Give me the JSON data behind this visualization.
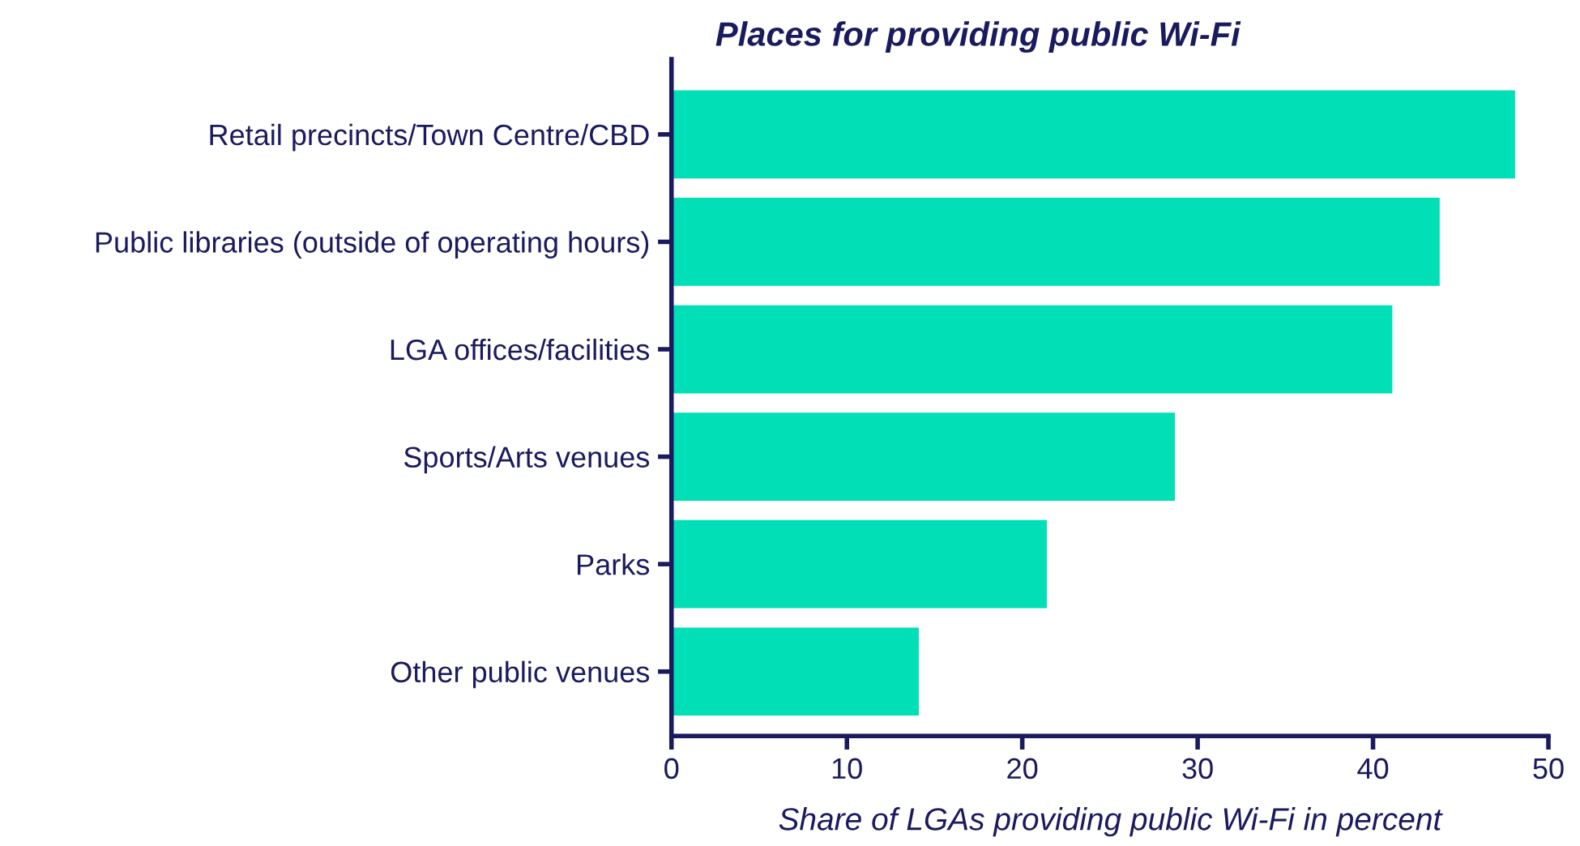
{
  "chart_data": {
    "type": "bar",
    "orientation": "horizontal",
    "title": "Places for providing public Wi-Fi",
    "xlabel": "Share of LGAs providing public Wi-Fi in percent",
    "categories": [
      "Retail precincts/Town Centre/CBD",
      "Public libraries (outside of operating hours)",
      "LGA offices/facilities",
      "Sports/Arts venues",
      "Parks",
      "Other public venues"
    ],
    "values": [
      48.1,
      43.8,
      41.1,
      28.7,
      21.4,
      14.1
    ],
    "color": "#00dfb6",
    "xlim": [
      0,
      50
    ],
    "xticks": [
      0,
      10,
      20,
      30,
      40,
      50
    ],
    "grid": false,
    "legend": false
  }
}
